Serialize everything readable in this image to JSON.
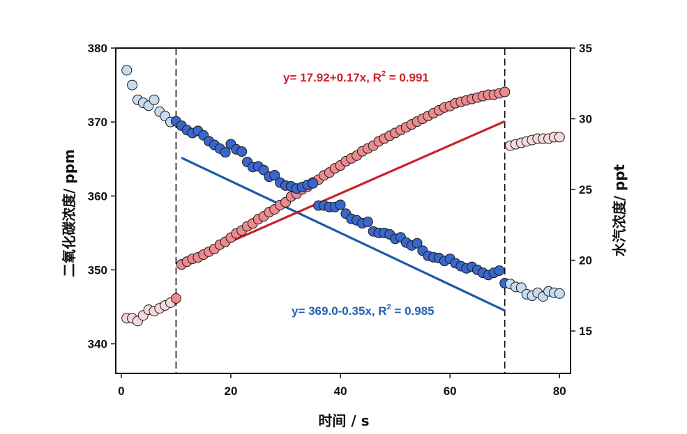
{
  "chart_data": {
    "type": "scatter",
    "xlabel": "时间 / s",
    "ylabel_left": "二氧化碳浓度/ ppm",
    "ylabel_right": "水汽浓度/ ppt",
    "xlim": [
      -1,
      82
    ],
    "xticks": [
      0,
      20,
      40,
      60,
      80
    ],
    "ylim_left": [
      336,
      380
    ],
    "yticks_left": [
      340,
      350,
      360,
      370,
      380
    ],
    "ylim_right": [
      12,
      35
    ],
    "yticks_right": [
      15,
      20,
      25,
      30,
      35
    ],
    "vlines": [
      10,
      70
    ],
    "colors": {
      "co2_faded": "#c6dcf1",
      "co2_active": "#3a67cc",
      "co2_line": "#1d5aa8",
      "h2o_faded": "#f6d9dc",
      "h2o_active": "#ec8a8e",
      "h2o_line": "#c8222a"
    },
    "series": [
      {
        "axis": "left",
        "x": [
          1,
          2,
          3,
          4,
          5,
          6,
          7,
          8,
          9,
          10,
          11,
          12,
          13,
          14,
          15,
          16,
          17,
          18,
          19,
          20,
          21,
          22,
          23,
          24,
          25,
          26,
          27,
          28,
          29,
          30,
          31,
          32,
          33,
          34,
          35,
          36,
          37,
          38,
          39,
          40,
          41,
          42,
          43,
          44,
          45,
          46,
          47,
          48,
          49,
          50,
          51,
          52,
          53,
          54,
          55,
          56,
          57,
          58,
          59,
          60,
          61,
          62,
          63,
          64,
          65,
          66,
          67,
          68,
          69,
          70,
          71,
          72,
          73,
          74,
          75,
          76,
          77,
          78,
          79,
          80
        ],
        "y": [
          377,
          375,
          373,
          372.6,
          372.2,
          373,
          371.4,
          370.8,
          370,
          370.1,
          369.5,
          368.9,
          368.5,
          368.8,
          368.2,
          367.4,
          366.9,
          366.4,
          365.9,
          367,
          366.3,
          366,
          364.6,
          363.9,
          364,
          363.5,
          362.6,
          362.8,
          361.8,
          361.4,
          361.3,
          361,
          361.2,
          361.5,
          361.7,
          358.7,
          358.7,
          358.5,
          358.5,
          358.8,
          357.6,
          356.9,
          356.7,
          356.3,
          356.5,
          355.2,
          355,
          355,
          354.8,
          354.2,
          354.4,
          353.7,
          353.3,
          353.6,
          352.6,
          351.9,
          351.7,
          351.6,
          351.2,
          351.5,
          350.9,
          350.5,
          350.2,
          350.4,
          350,
          349.6,
          349.3,
          349.6,
          349.9,
          348.2,
          348.1,
          347.7,
          347.6,
          346.7,
          346.5,
          346.9,
          346.4,
          347.1,
          346.9,
          346.8
        ]
      },
      {
        "axis": "right",
        "x": [
          1,
          2,
          3,
          4,
          5,
          6,
          7,
          8,
          9,
          10,
          11,
          12,
          13,
          14,
          15,
          16,
          17,
          18,
          19,
          20,
          21,
          22,
          23,
          24,
          25,
          26,
          27,
          28,
          29,
          30,
          31,
          32,
          33,
          34,
          35,
          36,
          37,
          38,
          39,
          40,
          41,
          42,
          43,
          44,
          45,
          46,
          47,
          48,
          49,
          50,
          51,
          52,
          53,
          54,
          55,
          56,
          57,
          58,
          59,
          60,
          61,
          62,
          63,
          64,
          65,
          66,
          67,
          68,
          69,
          70,
          71,
          72,
          73,
          74,
          75,
          76,
          77,
          78,
          79,
          80
        ],
        "y": [
          15.9,
          15.9,
          15.7,
          16.1,
          16.5,
          16.4,
          16.6,
          16.8,
          17,
          17.3,
          19.7,
          19.9,
          20.1,
          20.2,
          20.4,
          20.6,
          20.8,
          21.1,
          21.3,
          21.6,
          21.9,
          22.1,
          22.4,
          22.6,
          22.9,
          23.1,
          23.4,
          23.6,
          23.9,
          24.1,
          24.5,
          24.7,
          25,
          25.2,
          25.5,
          25.7,
          26,
          26.2,
          26.5,
          26.7,
          27,
          27.2,
          27.4,
          27.7,
          27.9,
          28.1,
          28.4,
          28.6,
          28.8,
          29,
          29.2,
          29.4,
          29.6,
          29.8,
          30,
          30.2,
          30.4,
          30.6,
          30.8,
          30.9,
          31.1,
          31.2,
          31.3,
          31.4,
          31.5,
          31.6,
          31.7,
          31.7,
          31.8,
          31.9,
          28.1,
          28.2,
          28.3,
          28.4,
          28.5,
          28.6,
          28.6,
          28.6,
          28.7,
          28.7
        ]
      }
    ],
    "fits": [
      {
        "axis": "left",
        "x_range": [
          11,
          70
        ],
        "intercept": 369.0,
        "slope": -0.35,
        "label": "y= 369.0-0.35x, R",
        "r2": "= 0.985"
      },
      {
        "axis": "right",
        "x_range": [
          11,
          70
        ],
        "intercept": 17.92,
        "slope": 0.17,
        "label": "y= 17.92+0.17x, R",
        "r2": "= 0.991"
      }
    ],
    "superscript": "2"
  }
}
